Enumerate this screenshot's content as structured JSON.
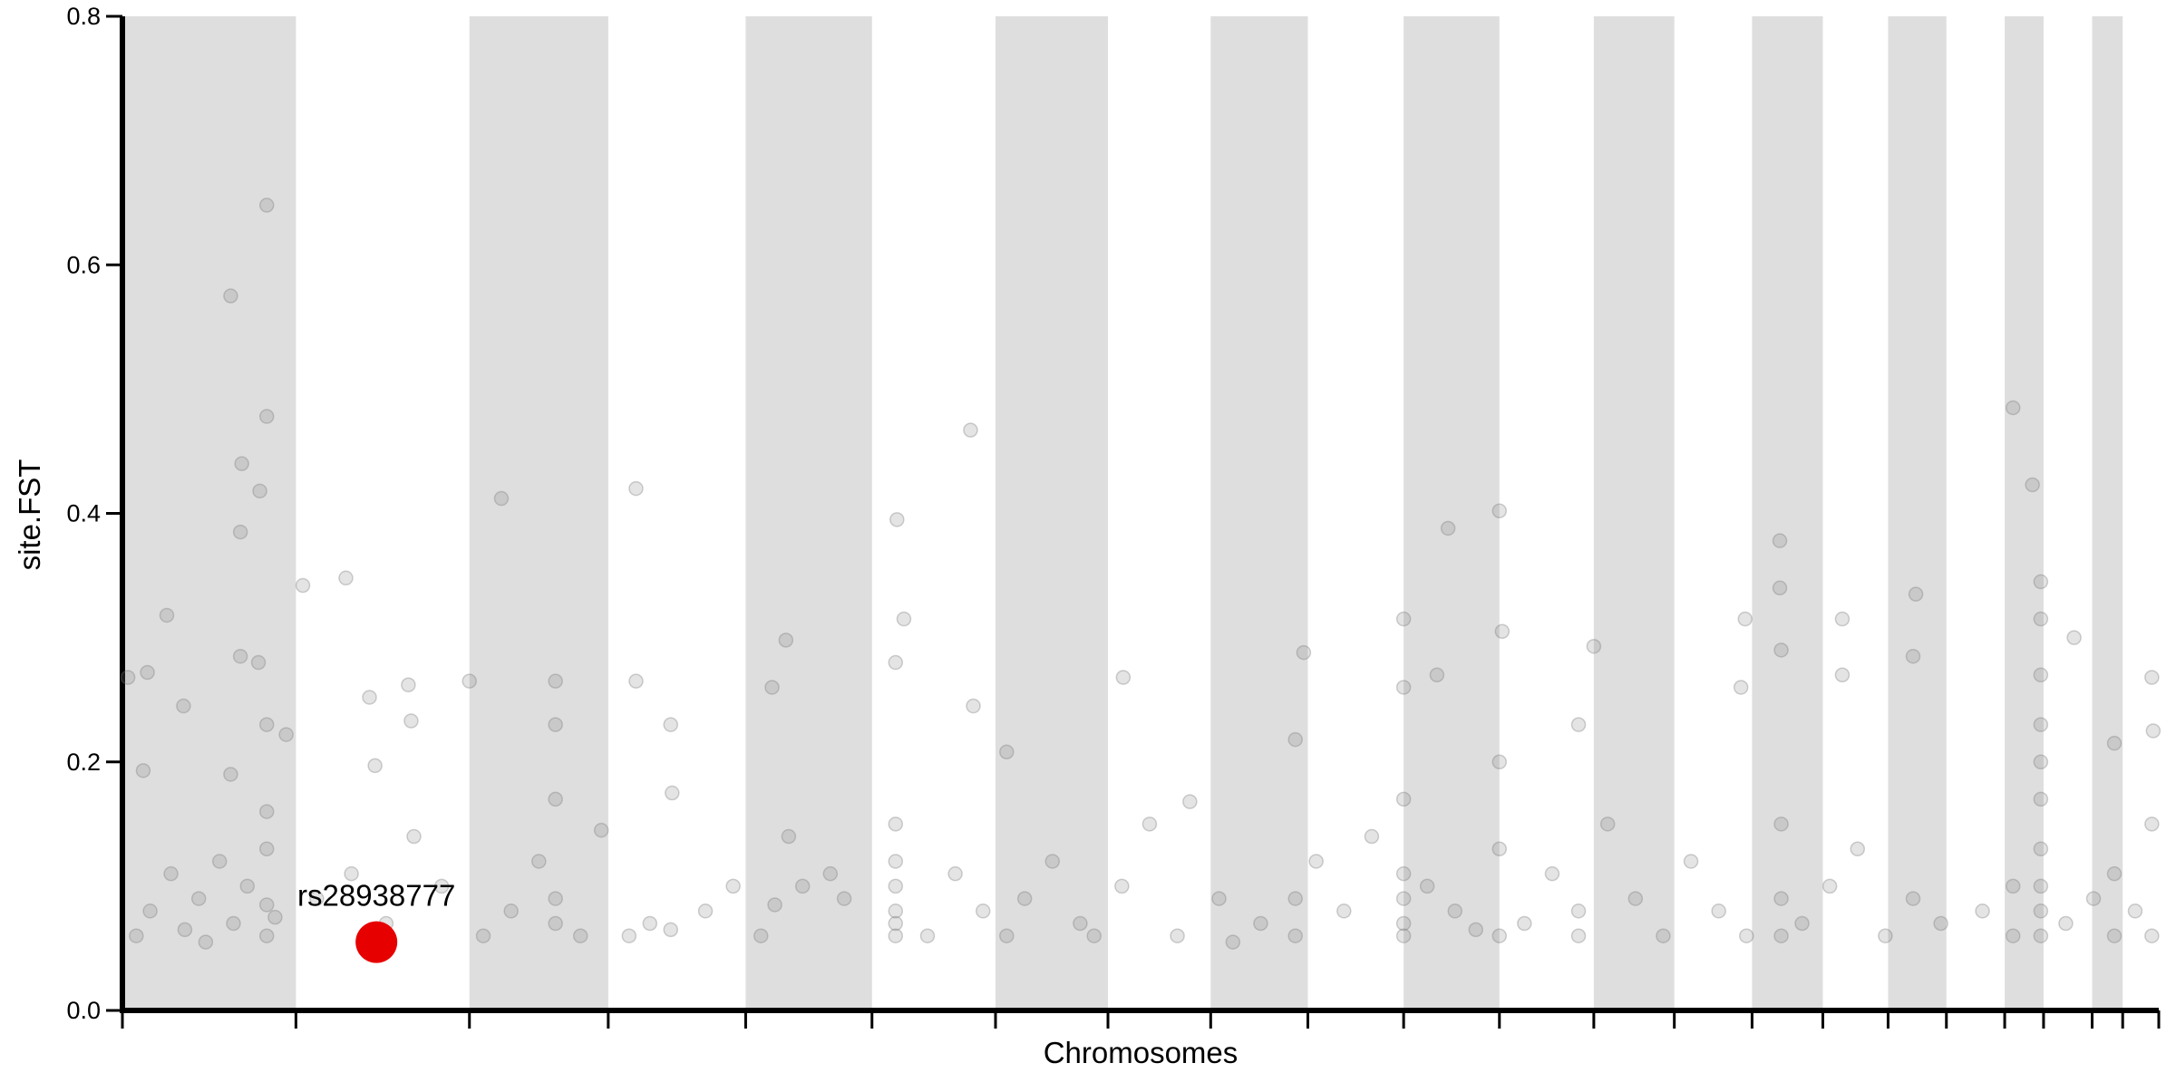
{
  "chart_data": {
    "type": "scatter",
    "x_label": "Chromosomes",
    "y_label": "site.FST",
    "xlim": [
      0,
      1467
    ],
    "xticks": [
      0,
      125,
      250,
      350,
      449,
      540,
      629,
      710,
      784,
      854,
      923,
      992,
      1060,
      1118,
      1174,
      1225,
      1272,
      1314,
      1356,
      1384,
      1419,
      1441,
      1467
    ],
    "shade_alternate": true,
    "shade_color": "#dedede",
    "ylim": [
      0,
      0.8
    ],
    "yticks": [
      {
        "value": 0,
        "label": "0.0"
      },
      0.2,
      0.4,
      0.6,
      0.8
    ],
    "series": [
      {
        "color": "#777777",
        "x": [
          78,
          104,
          104,
          86,
          99,
          85,
          85,
          98,
          32,
          4,
          18,
          44,
          15,
          78,
          104,
          118,
          130,
          161,
          178,
          206,
          208,
          182,
          250,
          273,
          312,
          312,
          312,
          370,
          370,
          395,
          396,
          478,
          468,
          558,
          563,
          557,
          611,
          613,
          637,
          721,
          769,
          851,
          845,
          923,
          923,
          947,
          955,
          992,
          994,
          1060,
          1049,
          1169,
          1166,
          1194,
          1194,
          1195,
          1239,
          1239,
          1292,
          1290,
          1362,
          1376,
          1382,
          1382,
          1382,
          1406,
          1435,
          1462,
          1463,
          10,
          20,
          35,
          45,
          55,
          70,
          80,
          90,
          104,
          104,
          104,
          104,
          110,
          60,
          140,
          165,
          190,
          210,
          230,
          260,
          280,
          300,
          312,
          312,
          330,
          345,
          365,
          380,
          395,
          420,
          440,
          460,
          470,
          480,
          490,
          510,
          520,
          557,
          557,
          557,
          557,
          557,
          557,
          580,
          600,
          620,
          637,
          650,
          670,
          690,
          700,
          720,
          740,
          760,
          790,
          800,
          820,
          845,
          845,
          860,
          880,
          900,
          923,
          923,
          923,
          923,
          923,
          940,
          960,
          975,
          992,
          992,
          992,
          1010,
          1030,
          1049,
          1049,
          1070,
          1090,
          1110,
          1130,
          1150,
          1170,
          1195,
          1195,
          1195,
          1210,
          1230,
          1250,
          1270,
          1290,
          1310,
          1340,
          1362,
          1362,
          1382,
          1382,
          1382,
          1382,
          1382,
          1382,
          1382,
          1400,
          1420,
          1435,
          1435,
          1450,
          1462,
          1462
        ],
        "values": [
          0.575,
          0.648,
          0.478,
          0.44,
          0.418,
          0.385,
          0.285,
          0.28,
          0.318,
          0.268,
          0.272,
          0.245,
          0.193,
          0.19,
          0.23,
          0.222,
          0.342,
          0.348,
          0.252,
          0.262,
          0.233,
          0.197,
          0.265,
          0.412,
          0.265,
          0.23,
          0.17,
          0.42,
          0.265,
          0.23,
          0.175,
          0.298,
          0.26,
          0.395,
          0.315,
          0.28,
          0.467,
          0.245,
          0.208,
          0.268,
          0.168,
          0.288,
          0.218,
          0.315,
          0.26,
          0.27,
          0.388,
          0.402,
          0.305,
          0.293,
          0.23,
          0.315,
          0.26,
          0.378,
          0.34,
          0.29,
          0.315,
          0.27,
          0.335,
          0.285,
          0.485,
          0.423,
          0.345,
          0.315,
          0.27,
          0.3,
          0.215,
          0.268,
          0.225,
          0.06,
          0.08,
          0.11,
          0.065,
          0.09,
          0.12,
          0.07,
          0.1,
          0.06,
          0.085,
          0.13,
          0.16,
          0.075,
          0.055,
          0.09,
          0.11,
          0.07,
          0.14,
          0.1,
          0.06,
          0.08,
          0.12,
          0.07,
          0.09,
          0.06,
          0.145,
          0.06,
          0.07,
          0.065,
          0.08,
          0.1,
          0.06,
          0.085,
          0.14,
          0.1,
          0.11,
          0.09,
          0.06,
          0.08,
          0.1,
          0.12,
          0.15,
          0.07,
          0.06,
          0.11,
          0.08,
          0.06,
          0.09,
          0.12,
          0.07,
          0.06,
          0.1,
          0.15,
          0.06,
          0.09,
          0.055,
          0.07,
          0.06,
          0.09,
          0.12,
          0.08,
          0.14,
          0.06,
          0.07,
          0.09,
          0.11,
          0.17,
          0.1,
          0.08,
          0.065,
          0.06,
          0.13,
          0.2,
          0.07,
          0.11,
          0.08,
          0.06,
          0.15,
          0.09,
          0.06,
          0.12,
          0.08,
          0.06,
          0.06,
          0.09,
          0.15,
          0.07,
          0.1,
          0.13,
          0.06,
          0.09,
          0.07,
          0.08,
          0.06,
          0.1,
          0.06,
          0.08,
          0.1,
          0.13,
          0.17,
          0.2,
          0.23,
          0.07,
          0.09,
          0.06,
          0.11,
          0.08,
          0.06,
          0.15
        ]
      }
    ],
    "highlight": {
      "label": "rs28938777",
      "x": 183,
      "value": 0.055,
      "color": "#e60000"
    }
  }
}
